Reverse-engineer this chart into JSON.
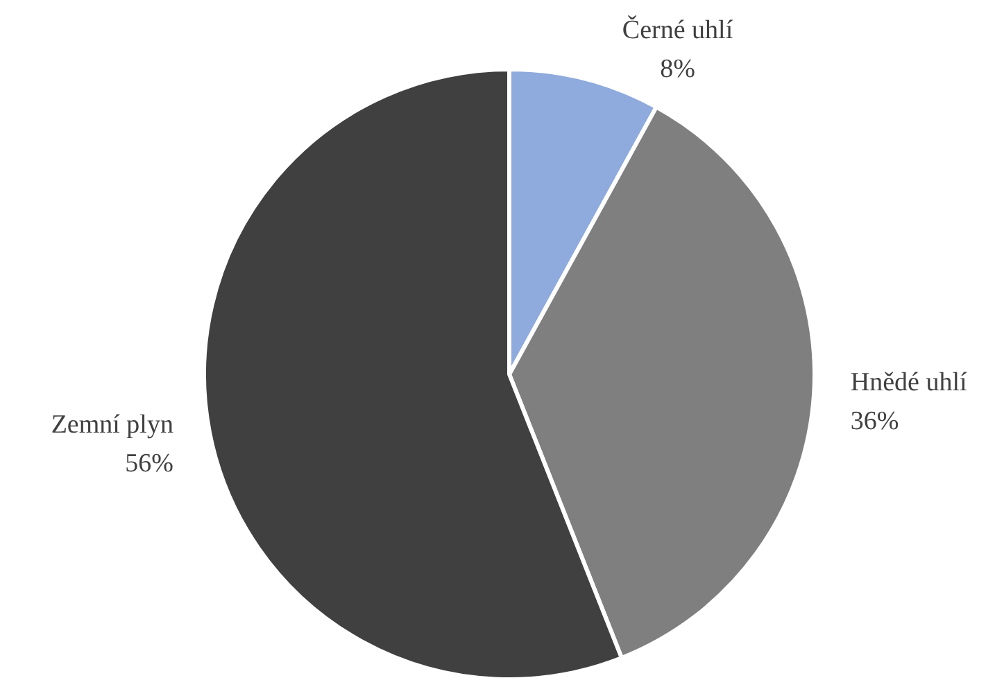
{
  "chart_data": {
    "type": "pie",
    "categories": [
      "Černé uhlí",
      "Hnědé uhlí",
      "Zemní plyn"
    ],
    "values": [
      8,
      36,
      56
    ],
    "value_labels": [
      "8%",
      "36%",
      "56%"
    ],
    "colors": [
      "#8faadc",
      "#7f7f7f",
      "#404040"
    ]
  }
}
